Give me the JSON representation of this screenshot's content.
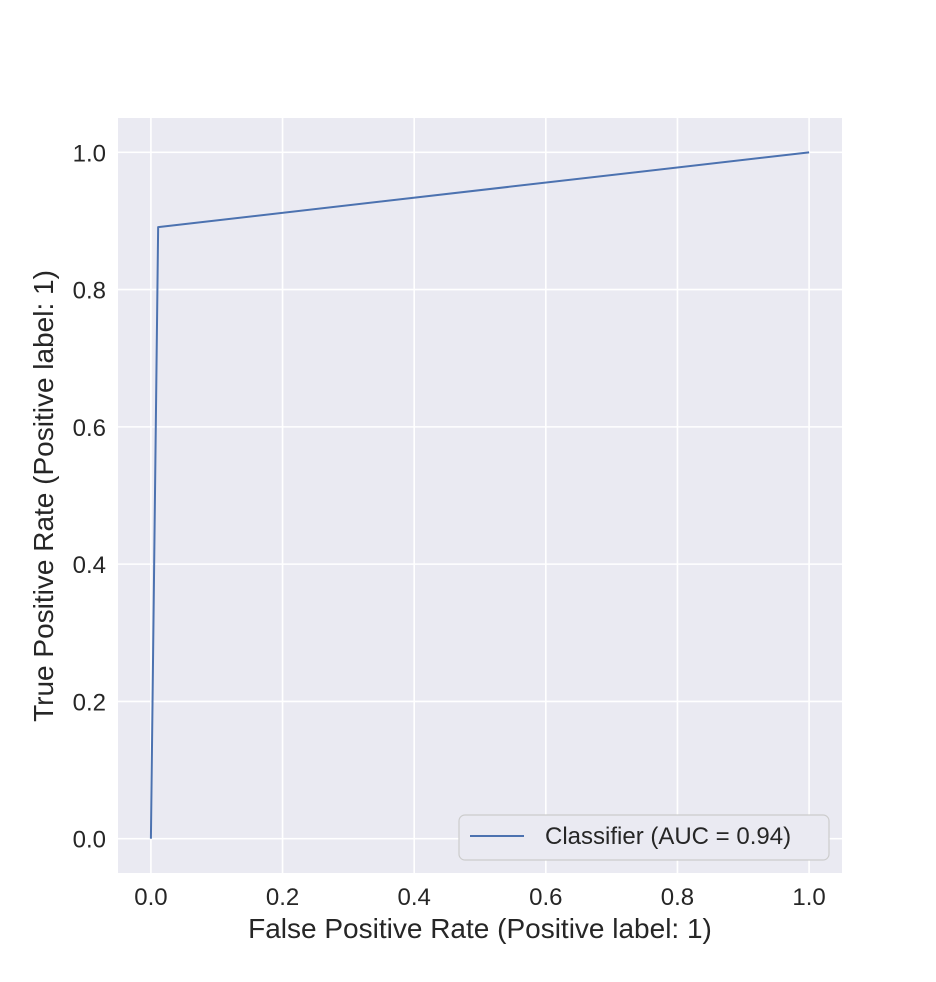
{
  "chart_data": {
    "type": "line",
    "title": "",
    "xlabel": "False Positive Rate (Positive label: 1)",
    "ylabel": "True Positive Rate (Positive label: 1)",
    "xlim": [
      -0.05,
      1.05
    ],
    "ylim": [
      -0.05,
      1.05
    ],
    "xticks": [
      0.0,
      0.2,
      0.4,
      0.6,
      0.8,
      1.0
    ],
    "yticks": [
      0.0,
      0.2,
      0.4,
      0.6,
      0.8,
      1.0
    ],
    "xtick_labels": [
      "0.0",
      "0.2",
      "0.4",
      "0.6",
      "0.8",
      "1.0"
    ],
    "ytick_labels": [
      "0.0",
      "0.2",
      "0.4",
      "0.6",
      "0.8",
      "1.0"
    ],
    "grid": true,
    "background": "#EAEAF2",
    "legend_position": "lower-right",
    "series": [
      {
        "name": "Classifier (AUC = 0.94)",
        "color": "#4C72B0",
        "x": [
          0.0,
          0.011,
          1.0
        ],
        "y": [
          0.0,
          0.891,
          1.0
        ]
      }
    ]
  }
}
